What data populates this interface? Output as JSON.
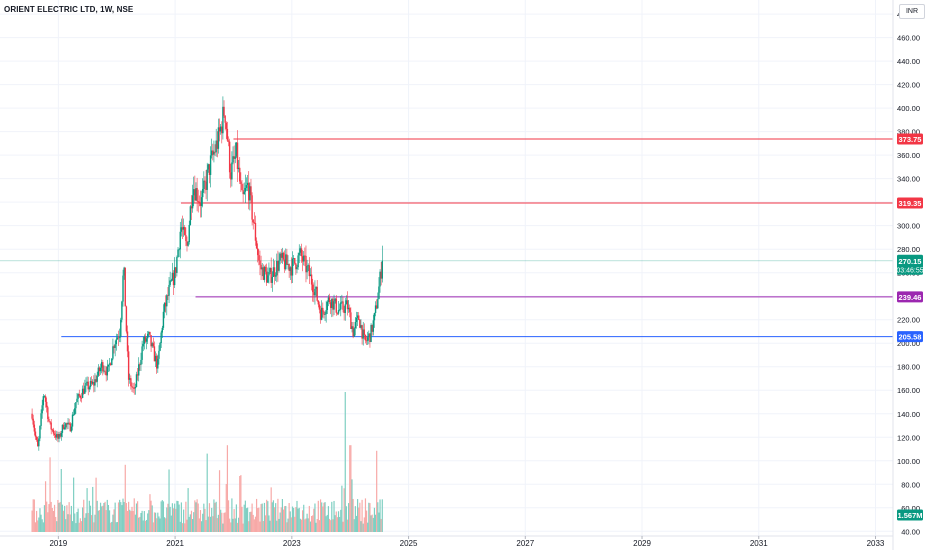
{
  "header": {
    "title": "ORIENT ELECTRIC LTD, 1W, NSE"
  },
  "price_scale": {
    "currency": "INR"
  },
  "chart_data": {
    "type": "candlestick",
    "title": "ORIENT ELECTRIC LTD, 1W, NSE",
    "y_ticks": [
      40,
      60,
      80,
      100,
      120,
      140,
      160,
      180,
      200,
      220,
      240,
      260,
      280,
      300,
      320,
      340,
      360,
      380,
      400,
      420,
      440,
      460,
      480
    ],
    "y_tick_labels": [
      "40.00",
      "60.00",
      "80.00",
      "100.00",
      "120.00",
      "140.00",
      "160.00",
      "180.00",
      "200.00",
      "220.00",
      "240.00",
      "260.00",
      "280.00",
      "300.00",
      "320.00",
      "340.00",
      "360.00",
      "380.00",
      "400.00",
      "420.00",
      "440.00",
      "460.00",
      "480.00"
    ],
    "ylim": [
      36,
      492
    ],
    "x_ticks": [
      "2019",
      "2021",
      "2023",
      "2025",
      "2027",
      "2029",
      "2031",
      "2033"
    ],
    "xlim": [
      2018.0,
      2033.3
    ],
    "price_path": [
      [
        2018.55,
        140
      ],
      [
        2018.6,
        122
      ],
      [
        2018.65,
        110
      ],
      [
        2018.75,
        160
      ],
      [
        2018.85,
        130
      ],
      [
        2019.0,
        118
      ],
      [
        2019.1,
        132
      ],
      [
        2019.2,
        128
      ],
      [
        2019.3,
        150
      ],
      [
        2019.45,
        162
      ],
      [
        2019.6,
        165
      ],
      [
        2019.75,
        182
      ],
      [
        2019.85,
        175
      ],
      [
        2019.95,
        200
      ],
      [
        2020.05,
        210
      ],
      [
        2020.12,
        265
      ],
      [
        2020.2,
        170
      ],
      [
        2020.3,
        158
      ],
      [
        2020.45,
        200
      ],
      [
        2020.55,
        205
      ],
      [
        2020.7,
        180
      ],
      [
        2020.8,
        225
      ],
      [
        2020.9,
        245
      ],
      [
        2021.0,
        260
      ],
      [
        2021.1,
        300
      ],
      [
        2021.2,
        280
      ],
      [
        2021.3,
        335
      ],
      [
        2021.45,
        320
      ],
      [
        2021.6,
        352
      ],
      [
        2021.75,
        375
      ],
      [
        2021.85,
        400
      ],
      [
        2021.95,
        345
      ],
      [
        2022.05,
        360
      ],
      [
        2022.15,
        320
      ],
      [
        2022.25,
        335
      ],
      [
        2022.35,
        300
      ],
      [
        2022.45,
        265
      ],
      [
        2022.6,
        255
      ],
      [
        2022.8,
        270
      ],
      [
        2023.0,
        265
      ],
      [
        2023.15,
        275
      ],
      [
        2023.3,
        258
      ],
      [
        2023.4,
        245
      ],
      [
        2023.5,
        225
      ],
      [
        2023.65,
        238
      ],
      [
        2023.8,
        228
      ],
      [
        2023.95,
        232
      ],
      [
        2024.05,
        210
      ],
      [
        2024.15,
        222
      ],
      [
        2024.25,
        200
      ],
      [
        2024.35,
        208
      ],
      [
        2024.42,
        222
      ],
      [
        2024.5,
        250
      ],
      [
        2024.55,
        270
      ]
    ],
    "volume_peaks": [
      [
        2021.55,
        0.56
      ],
      [
        2021.9,
        0.62
      ],
      [
        2024.0,
        0.62
      ],
      [
        2023.92,
        1.0
      ],
      [
        2024.45,
        0.58
      ],
      [
        2019.05,
        0.45
      ],
      [
        2020.15,
        0.48
      ],
      [
        2022.1,
        0.4
      ],
      [
        2018.85,
        0.5
      ]
    ],
    "horizontal_lines": [
      {
        "price": 373.75,
        "label": "373.75",
        "color": "#f23645",
        "start_x": 2022.0
      },
      {
        "price": 319.35,
        "label": "319.35",
        "color": "#f23645",
        "start_x": 2021.1
      },
      {
        "price": 239.46,
        "label": "239.46",
        "color": "#9c27b0",
        "start_x": 2021.35
      },
      {
        "price": 205.58,
        "label": "205.58",
        "color": "#2962ff",
        "start_x": 2019.05
      }
    ],
    "last_price": {
      "price": 270.15,
      "label": "270.15",
      "countdown": "03:46:55",
      "color": "#089981"
    },
    "volume_label": {
      "label": "1.567M",
      "color": "#089981"
    },
    "colors": {
      "up": "#089981",
      "down": "#f23645",
      "up_volume": "#7fcfc2",
      "down_volume": "#f7a9a7"
    }
  }
}
